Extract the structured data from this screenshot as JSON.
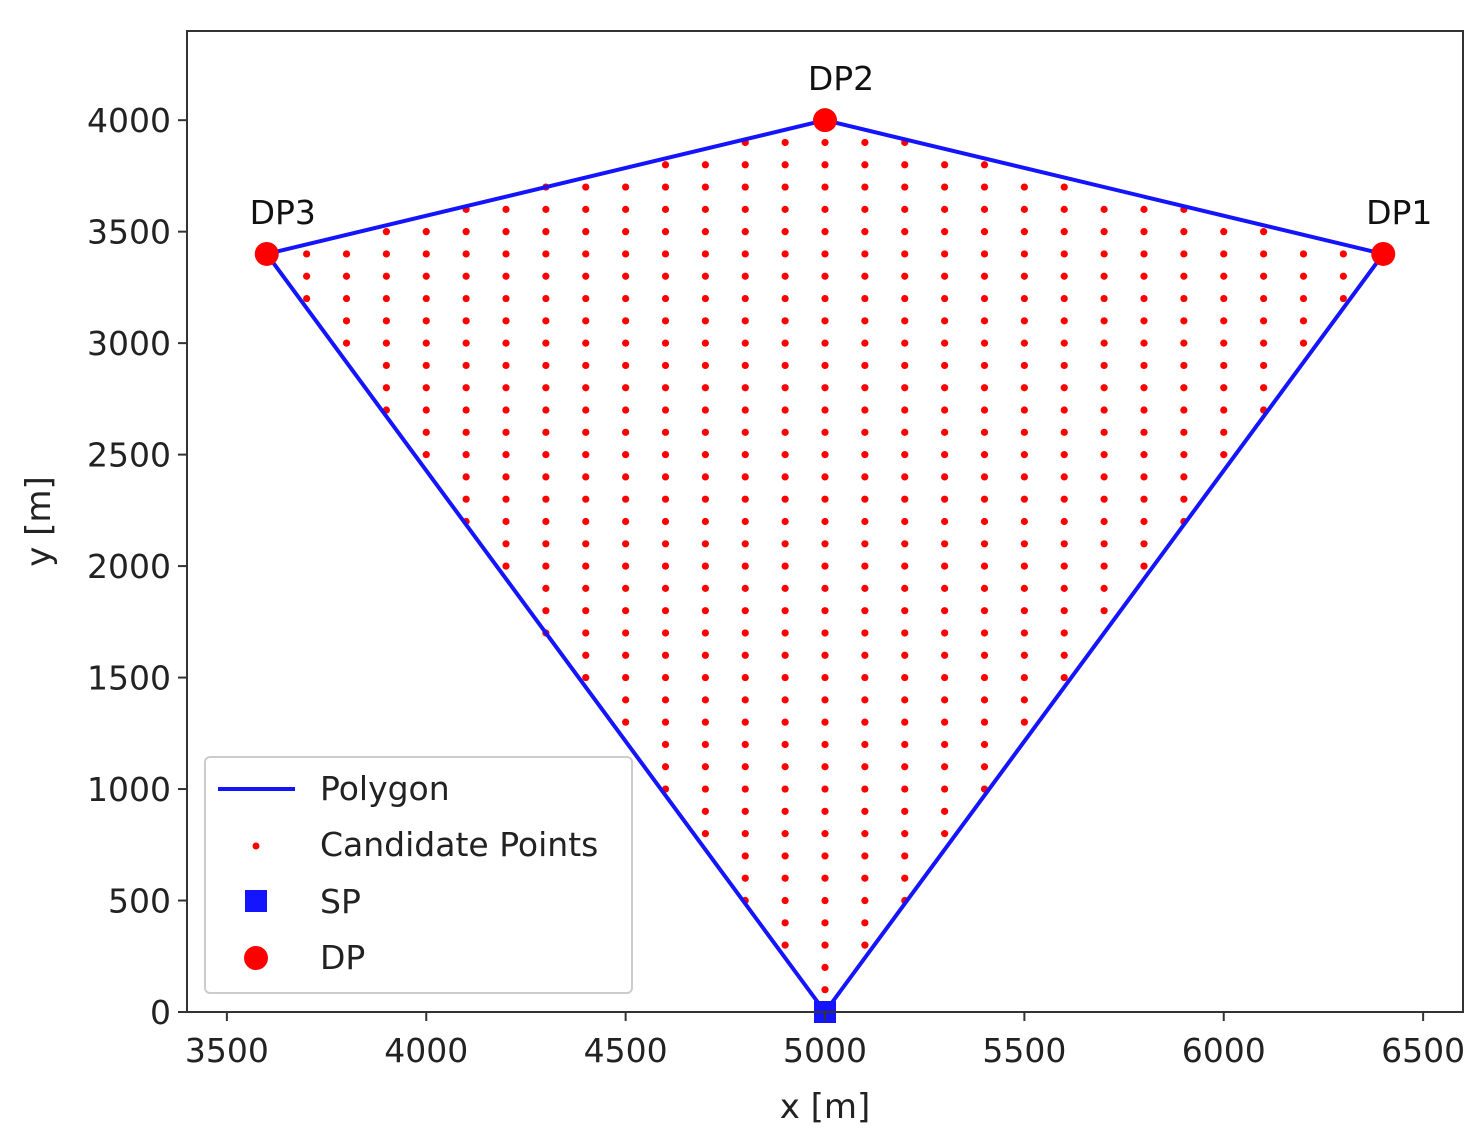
{
  "chart_data": {
    "type": "scatter",
    "title": "",
    "xlabel": "x [m]",
    "ylabel": "y [m]",
    "xlim": [
      3400,
      6600
    ],
    "ylim": [
      0,
      4400
    ],
    "xticks": [
      3500,
      4000,
      4500,
      5000,
      5500,
      6000,
      6500
    ],
    "yticks": [
      0,
      500,
      1000,
      1500,
      2000,
      2500,
      3000,
      3500,
      4000
    ],
    "grid": false,
    "legend_position": "lower-left",
    "polygon": {
      "name": "Polygon",
      "color": "#1414ff",
      "points": [
        [
          5000,
          0
        ],
        [
          6400,
          3400
        ],
        [
          5000,
          4000
        ],
        [
          3600,
          3400
        ],
        [
          5000,
          0
        ]
      ]
    },
    "candidate_points": {
      "name": "Candidate Points",
      "color": "#ff0000",
      "grid_spacing_x": 100,
      "grid_spacing_y": 100,
      "x_range": [
        3700,
        6300
      ],
      "y_range": [
        100,
        3900
      ]
    },
    "sp": {
      "name": "SP",
      "color": "#1414ff",
      "points": [
        [
          5000,
          0
        ]
      ]
    },
    "dp": {
      "name": "DP",
      "color": "#ff0000",
      "points": [
        {
          "label": "DP1",
          "x": 6400,
          "y": 3400
        },
        {
          "label": "DP2",
          "x": 5000,
          "y": 4000
        },
        {
          "label": "DP3",
          "x": 3600,
          "y": 3400
        }
      ]
    }
  }
}
